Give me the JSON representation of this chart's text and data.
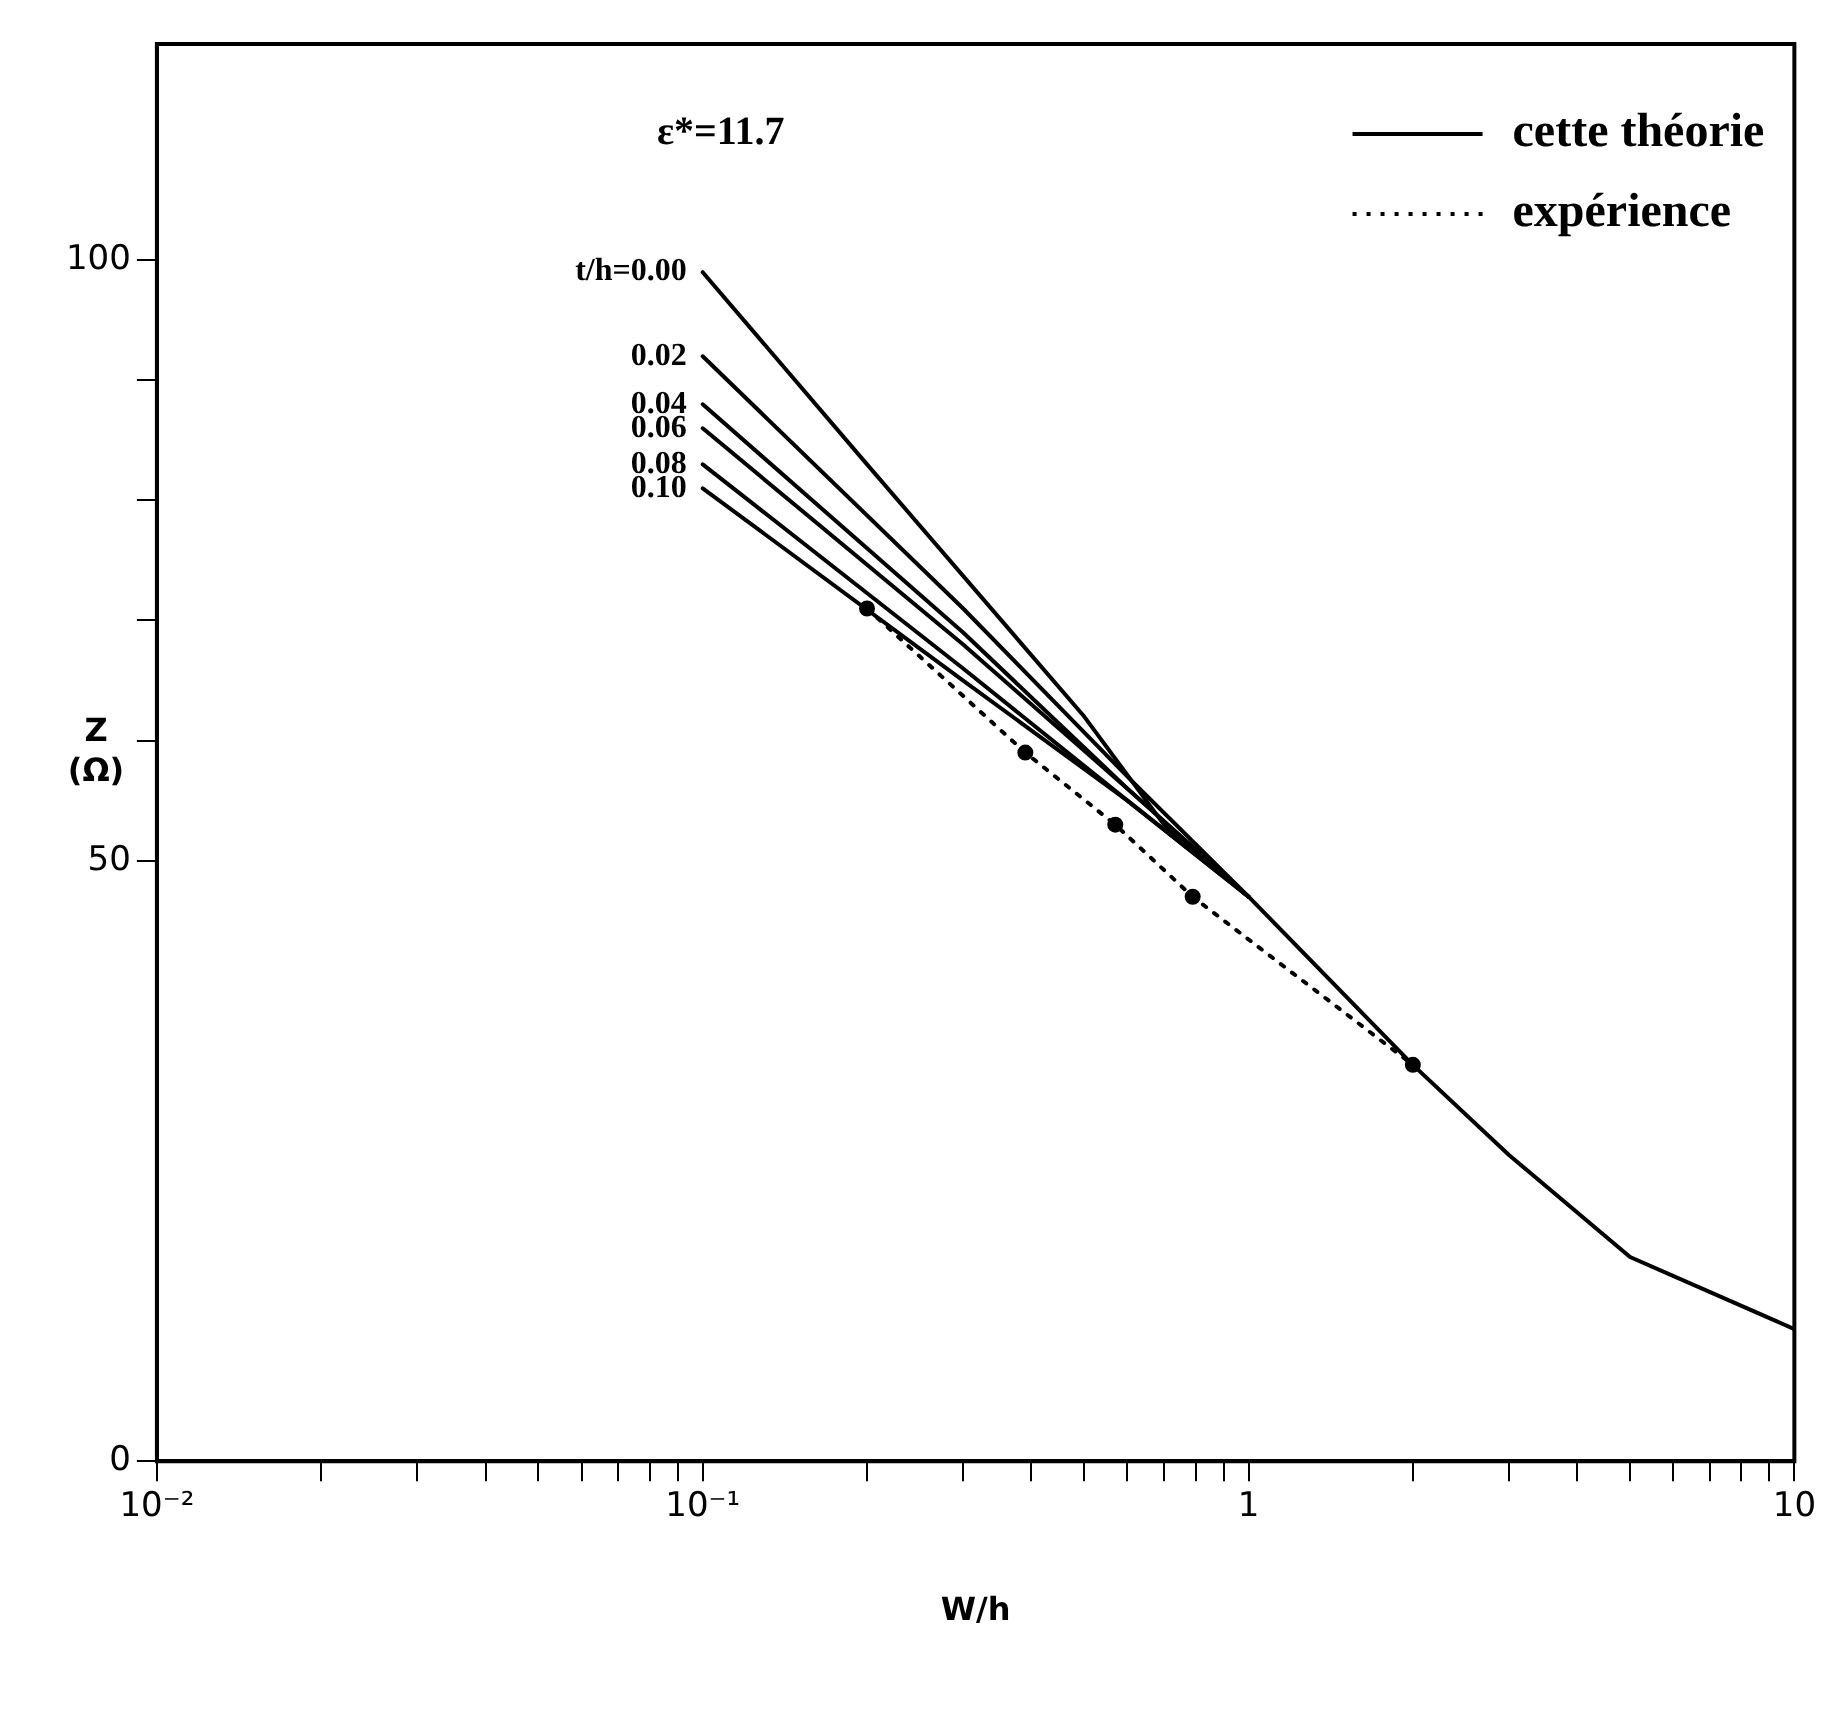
{
  "chart_data": {
    "type": "line",
    "xlabel": "W/h",
    "ylabel": "Z (Ω)",
    "log": "x",
    "legend": "top right",
    "line_style": "solid",
    "marker": "none",
    "grid": false,
    "xlim": [
      0.01,
      10
    ],
    "ylim": [
      0,
      118
    ],
    "xticks": [
      {
        "value": 0.01,
        "label": "10⁻²"
      },
      {
        "value": 0.02,
        "label": null
      },
      {
        "value": 0.03,
        "label": null
      },
      {
        "value": 0.04,
        "label": null
      },
      {
        "value": 0.05,
        "label": null
      },
      {
        "value": 0.06,
        "label": null
      },
      {
        "value": 0.07,
        "label": null
      },
      {
        "value": 0.08,
        "label": null
      },
      {
        "value": 0.09,
        "label": null
      },
      {
        "value": 0.1,
        "label": "10⁻¹"
      },
      {
        "value": 0.2,
        "label": null
      },
      {
        "value": 0.3,
        "label": null
      },
      {
        "value": 0.4,
        "label": null
      },
      {
        "value": 0.5,
        "label": null
      },
      {
        "value": 0.6,
        "label": null
      },
      {
        "value": 0.7,
        "label": null
      },
      {
        "value": 0.8,
        "label": null
      },
      {
        "value": 0.9,
        "label": null
      },
      1,
      {
        "value": 2,
        "label": null
      },
      {
        "value": 3,
        "label": null
      },
      {
        "value": 4,
        "label": null
      },
      {
        "value": 5,
        "label": null
      },
      {
        "value": 6,
        "label": null
      },
      {
        "value": 7,
        "label": null
      },
      {
        "value": 8,
        "label": null
      },
      {
        "value": 9,
        "label": null
      },
      10
    ],
    "yticks": [
      0,
      50,
      {
        "value": 60,
        "label": null
      },
      {
        "value": 70,
        "label": null
      },
      {
        "value": 80,
        "label": null
      },
      {
        "value": 90,
        "label": null
      },
      100
    ],
    "annotations": [
      "ε*=11.7",
      "t/h=0.00",
      "0.02",
      "0.04",
      "0.06",
      "0.08",
      "0.10"
    ],
    "series": [
      {
        "name": "cette théorie",
        "color": "#000000",
        "x": [
          0.1,
          0.2,
          0.5,
          0.7,
          1,
          2,
          3,
          5,
          10
        ],
        "values": [
          99,
          83,
          62,
          53,
          47,
          33,
          25.5,
          17,
          11
        ]
      },
      {
        "color": "#000000",
        "x": [
          0.1,
          0.3,
          0.6,
          1
        ],
        "values": [
          92,
          71,
          57,
          47
        ]
      },
      {
        "color": "#000000",
        "x": [
          0.1,
          0.3,
          0.6,
          1
        ],
        "values": [
          88,
          69,
          56,
          47
        ]
      },
      {
        "color": "#000000",
        "x": [
          0.1,
          0.3,
          0.6,
          1
        ],
        "values": [
          86,
          68,
          56,
          47
        ]
      },
      {
        "color": "#000000",
        "x": [
          0.1,
          0.3,
          0.6,
          1
        ],
        "values": [
          83,
          66,
          55,
          47
        ]
      },
      {
        "color": "#000000",
        "x": [
          0.1,
          0.3,
          0.6,
          1
        ],
        "values": [
          81,
          65,
          55,
          47
        ]
      },
      {
        "name": "expérience",
        "color": "#000000",
        "line_style": "dotted",
        "marker": "circle",
        "x": [
          0.2,
          0.39,
          0.57,
          0.79,
          2
        ],
        "values": [
          71,
          59,
          53,
          47,
          33
        ]
      }
    ]
  }
}
